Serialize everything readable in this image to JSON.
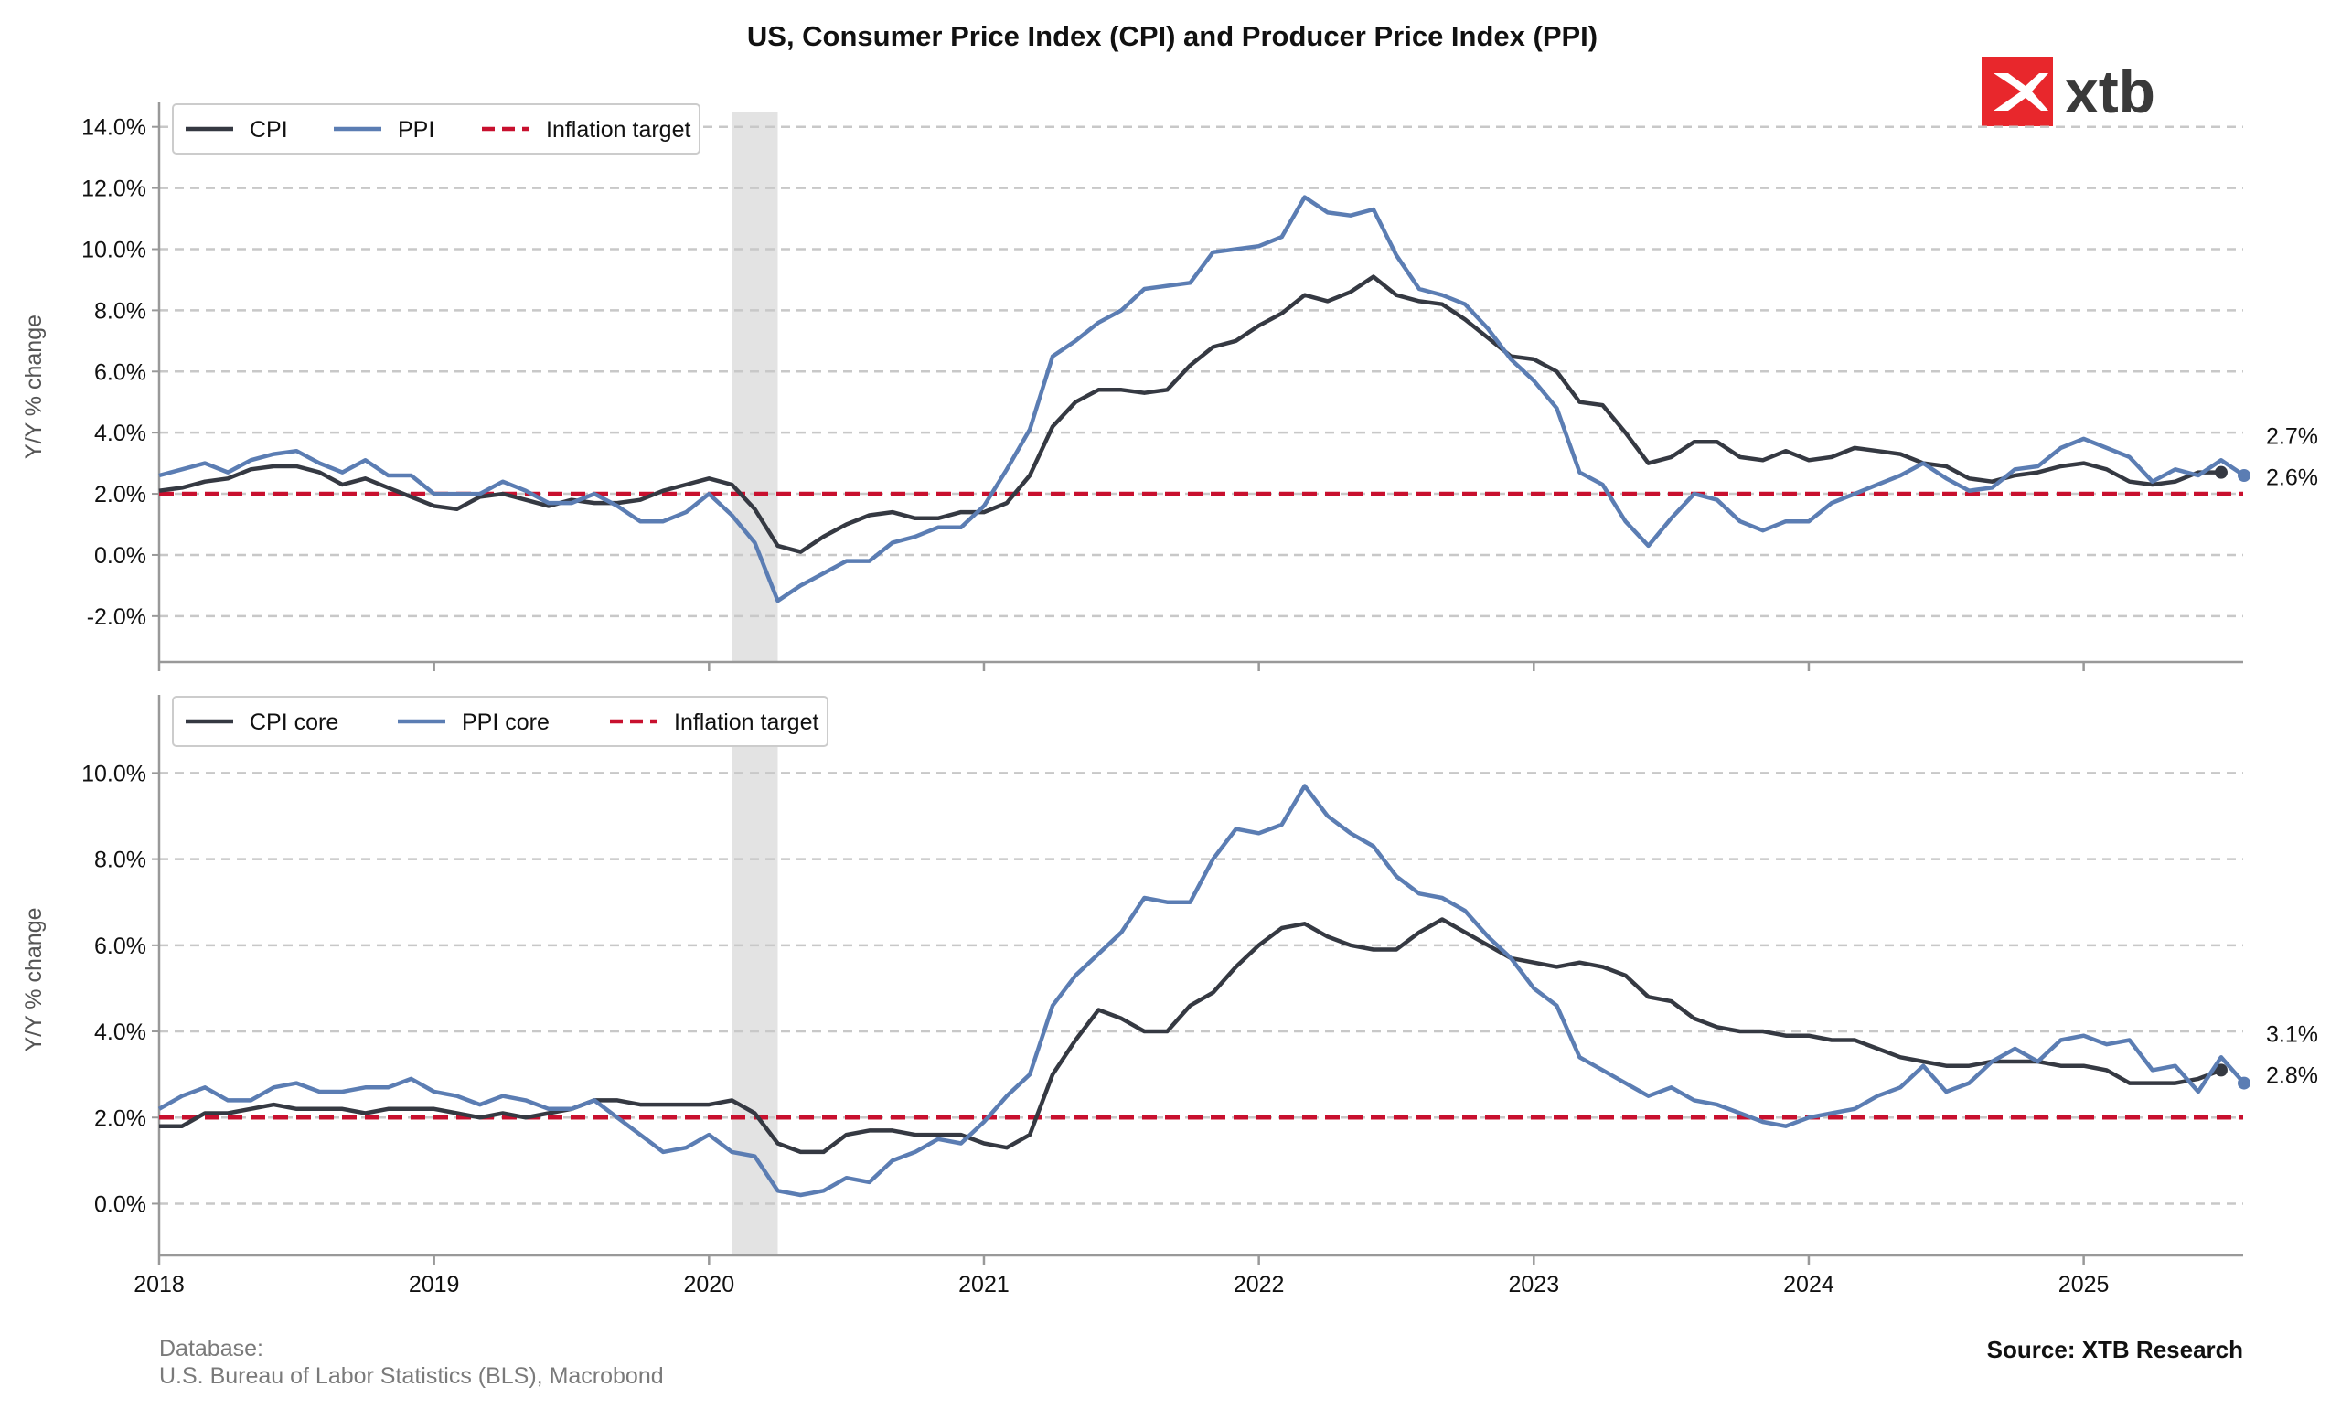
{
  "title": "US, Consumer Price Index (CPI) and Producer Price Index (PPI)",
  "logo": {
    "text": "xtb",
    "brand_color": "#e8272c",
    "icon": "xtb-x-logo-icon"
  },
  "footer": {
    "database_label": "Database:",
    "database_source": "U.S. Bureau of Labor Statistics (BLS), Macrobond",
    "source": "Source: XTB Research"
  },
  "colors": {
    "cpi": "#353942",
    "ppi": "#5b7db3",
    "target": "#c8102e",
    "grid": "#c8c8c8",
    "recession": "#e3e3e3"
  },
  "chart_data": [
    {
      "type": "line",
      "ylabel": "Y/Y % change",
      "ylim": [
        -3.5,
        14.5
      ],
      "yticks": [
        -2,
        0,
        2,
        4,
        6,
        8,
        10,
        12,
        14
      ],
      "ytick_labels": [
        "-2.0%",
        "0.0%",
        "2.0%",
        "4.0%",
        "6.0%",
        "8.0%",
        "10.0%",
        "12.0%",
        "14.0%"
      ],
      "xlim": [
        2018.0,
        2025.58
      ],
      "shaded_range": [
        2020.083,
        2020.25
      ],
      "target": 2.0,
      "legend": [
        "CPI",
        "PPI",
        "Inflation target"
      ],
      "legend_position": "top-left",
      "end_labels": [
        "2.7%",
        "2.6%"
      ],
      "series": [
        {
          "name": "CPI",
          "start": 2018.0,
          "step": 0.0833333,
          "values": [
            2.1,
            2.2,
            2.4,
            2.5,
            2.8,
            2.9,
            2.9,
            2.7,
            2.3,
            2.5,
            2.2,
            1.9,
            1.6,
            1.5,
            1.9,
            2.0,
            1.8,
            1.6,
            1.8,
            1.7,
            1.7,
            1.8,
            2.1,
            2.3,
            2.5,
            2.3,
            1.5,
            0.3,
            0.1,
            0.6,
            1.0,
            1.3,
            1.4,
            1.2,
            1.2,
            1.4,
            1.4,
            1.7,
            2.6,
            4.2,
            5.0,
            5.4,
            5.4,
            5.3,
            5.4,
            6.2,
            6.8,
            7.0,
            7.5,
            7.9,
            8.5,
            8.3,
            8.6,
            9.1,
            8.5,
            8.3,
            8.2,
            7.7,
            7.1,
            6.5,
            6.4,
            6.0,
            5.0,
            4.9,
            4.0,
            3.0,
            3.2,
            3.7,
            3.7,
            3.2,
            3.1,
            3.4,
            3.1,
            3.2,
            3.5,
            3.4,
            3.3,
            3.0,
            2.9,
            2.5,
            2.4,
            2.6,
            2.7,
            2.9,
            3.0,
            2.8,
            2.4,
            2.3,
            2.4,
            2.7,
            2.7
          ]
        },
        {
          "name": "PPI",
          "start": 2018.0,
          "step": 0.0833333,
          "values": [
            2.6,
            2.8,
            3.0,
            2.7,
            3.1,
            3.3,
            3.4,
            3.0,
            2.7,
            3.1,
            2.6,
            2.6,
            2.0,
            2.0,
            2.0,
            2.4,
            2.1,
            1.7,
            1.7,
            2.0,
            1.6,
            1.1,
            1.1,
            1.4,
            2.0,
            1.3,
            0.4,
            -1.5,
            -1.0,
            -0.6,
            -0.2,
            -0.2,
            0.4,
            0.6,
            0.9,
            0.9,
            1.6,
            2.8,
            4.1,
            6.5,
            7.0,
            7.6,
            8.0,
            8.7,
            8.8,
            8.9,
            9.9,
            10.0,
            10.1,
            10.4,
            11.7,
            11.2,
            11.1,
            11.3,
            9.8,
            8.7,
            8.5,
            8.2,
            7.4,
            6.4,
            5.7,
            4.8,
            2.7,
            2.3,
            1.1,
            0.3,
            1.2,
            2.0,
            1.8,
            1.1,
            0.8,
            1.1,
            1.1,
            1.7,
            2.0,
            2.3,
            2.6,
            3.0,
            2.5,
            2.1,
            2.2,
            2.8,
            2.9,
            3.5,
            3.8,
            3.5,
            3.2,
            2.4,
            2.8,
            2.6,
            3.1,
            2.6
          ]
        }
      ]
    },
    {
      "type": "line",
      "ylabel": "Y/Y % change",
      "ylim": [
        -1.2,
        11.6
      ],
      "yticks": [
        0,
        2,
        4,
        6,
        8,
        10
      ],
      "ytick_labels": [
        "0.0%",
        "2.0%",
        "4.0%",
        "6.0%",
        "8.0%",
        "10.0%"
      ],
      "xlim": [
        2018.0,
        2025.58
      ],
      "shaded_range": [
        2020.083,
        2020.25
      ],
      "target": 2.0,
      "legend": [
        "CPI core",
        "PPI core",
        "Inflation target"
      ],
      "legend_position": "top-left",
      "end_labels": [
        "3.1%",
        "2.8%"
      ],
      "xticks": [
        2018,
        2019,
        2020,
        2021,
        2022,
        2023,
        2024,
        2025
      ],
      "xtick_labels": [
        "2018",
        "2019",
        "2020",
        "2021",
        "2022",
        "2023",
        "2024",
        "2025"
      ],
      "series": [
        {
          "name": "CPI core",
          "start": 2018.0,
          "step": 0.0833333,
          "values": [
            1.8,
            1.8,
            2.1,
            2.1,
            2.2,
            2.3,
            2.2,
            2.2,
            2.2,
            2.1,
            2.2,
            2.2,
            2.2,
            2.1,
            2.0,
            2.1,
            2.0,
            2.1,
            2.2,
            2.4,
            2.4,
            2.3,
            2.3,
            2.3,
            2.3,
            2.4,
            2.1,
            1.4,
            1.2,
            1.2,
            1.6,
            1.7,
            1.7,
            1.6,
            1.6,
            1.6,
            1.4,
            1.3,
            1.6,
            3.0,
            3.8,
            4.5,
            4.3,
            4.0,
            4.0,
            4.6,
            4.9,
            5.5,
            6.0,
            6.4,
            6.5,
            6.2,
            6.0,
            5.9,
            5.9,
            6.3,
            6.6,
            6.3,
            6.0,
            5.7,
            5.6,
            5.5,
            5.6,
            5.5,
            5.3,
            4.8,
            4.7,
            4.3,
            4.1,
            4.0,
            4.0,
            3.9,
            3.9,
            3.8,
            3.8,
            3.6,
            3.4,
            3.3,
            3.2,
            3.2,
            3.3,
            3.3,
            3.3,
            3.2,
            3.2,
            3.1,
            2.8,
            2.8,
            2.8,
            2.9,
            3.1
          ]
        },
        {
          "name": "PPI core",
          "start": 2018.0,
          "step": 0.0833333,
          "values": [
            2.2,
            2.5,
            2.7,
            2.4,
            2.4,
            2.7,
            2.8,
            2.6,
            2.6,
            2.7,
            2.7,
            2.9,
            2.6,
            2.5,
            2.3,
            2.5,
            2.4,
            2.2,
            2.2,
            2.4,
            2.0,
            1.6,
            1.2,
            1.3,
            1.6,
            1.2,
            1.1,
            0.3,
            0.2,
            0.3,
            0.6,
            0.5,
            1.0,
            1.2,
            1.5,
            1.4,
            1.9,
            2.5,
            3.0,
            4.6,
            5.3,
            5.8,
            6.3,
            7.1,
            7.0,
            7.0,
            8.0,
            8.7,
            8.6,
            8.8,
            9.7,
            9.0,
            8.6,
            8.3,
            7.6,
            7.2,
            7.1,
            6.8,
            6.2,
            5.7,
            5.0,
            4.6,
            3.4,
            3.1,
            2.8,
            2.5,
            2.7,
            2.4,
            2.3,
            2.1,
            1.9,
            1.8,
            2.0,
            2.1,
            2.2,
            2.5,
            2.7,
            3.2,
            2.6,
            2.8,
            3.3,
            3.6,
            3.3,
            3.8,
            3.9,
            3.7,
            3.8,
            3.1,
            3.2,
            2.6,
            3.4,
            2.8
          ]
        }
      ]
    }
  ]
}
